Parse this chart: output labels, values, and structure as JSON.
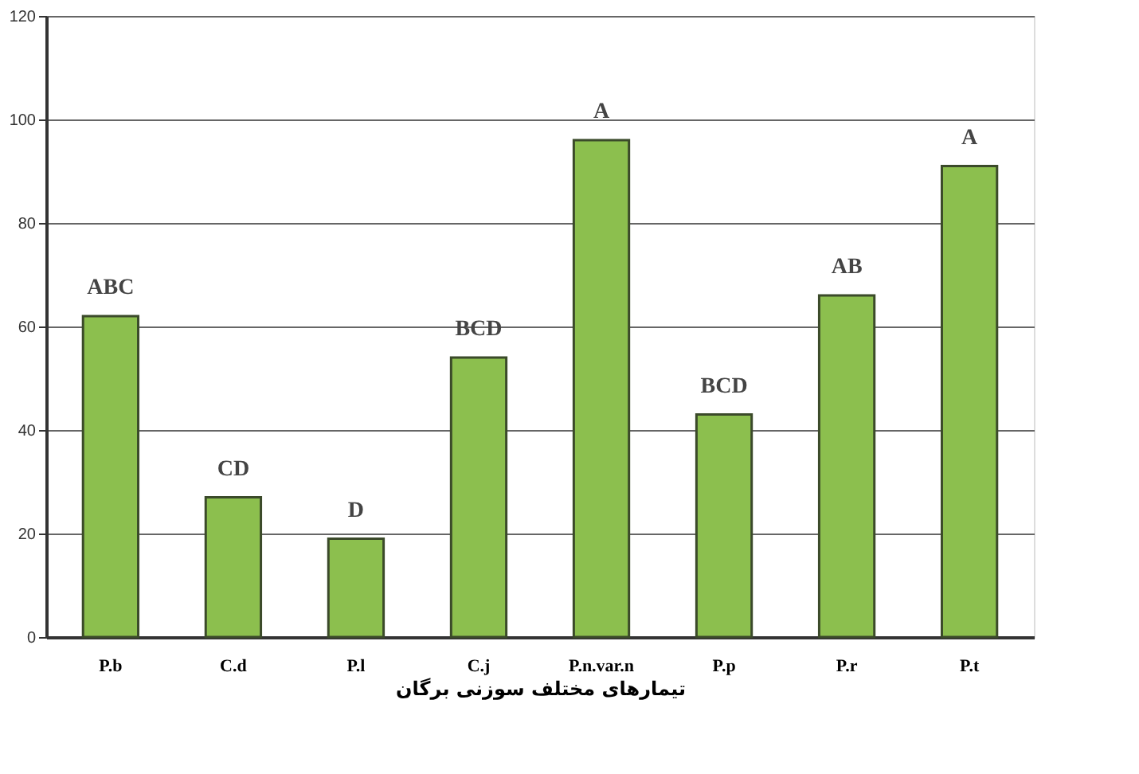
{
  "chart_data": {
    "type": "bar",
    "categories": [
      "P.b",
      "C.d",
      "P.l",
      "C.j",
      "P.n.var.n",
      "P.p",
      "P.r",
      "P.t"
    ],
    "values": [
      62,
      27,
      19,
      54,
      96,
      43,
      66,
      91
    ],
    "color": "#8cbf4e",
    "xlabel": "تیمارهای مختلف سوزنی برگان",
    "ylim": [
      0,
      120
    ],
    "yticks": [
      0,
      20,
      40,
      60,
      80,
      100,
      120
    ],
    "grid": "y",
    "annotations": [
      {
        "text": "ABC",
        "x": "P.b",
        "y": 62
      },
      {
        "text": "CD",
        "x": "C.d",
        "y": 27
      },
      {
        "text": "D",
        "x": "P.l",
        "y": 19
      },
      {
        "text": "BCD",
        "x": "C.j",
        "y": 54
      },
      {
        "text": "A",
        "x": "P.n.var.n",
        "y": 96
      },
      {
        "text": "BCD",
        "x": "P.p",
        "y": 43
      },
      {
        "text": "AB",
        "x": "P.r",
        "y": 66
      },
      {
        "text": "A",
        "x": "P.t",
        "y": 91
      }
    ]
  }
}
